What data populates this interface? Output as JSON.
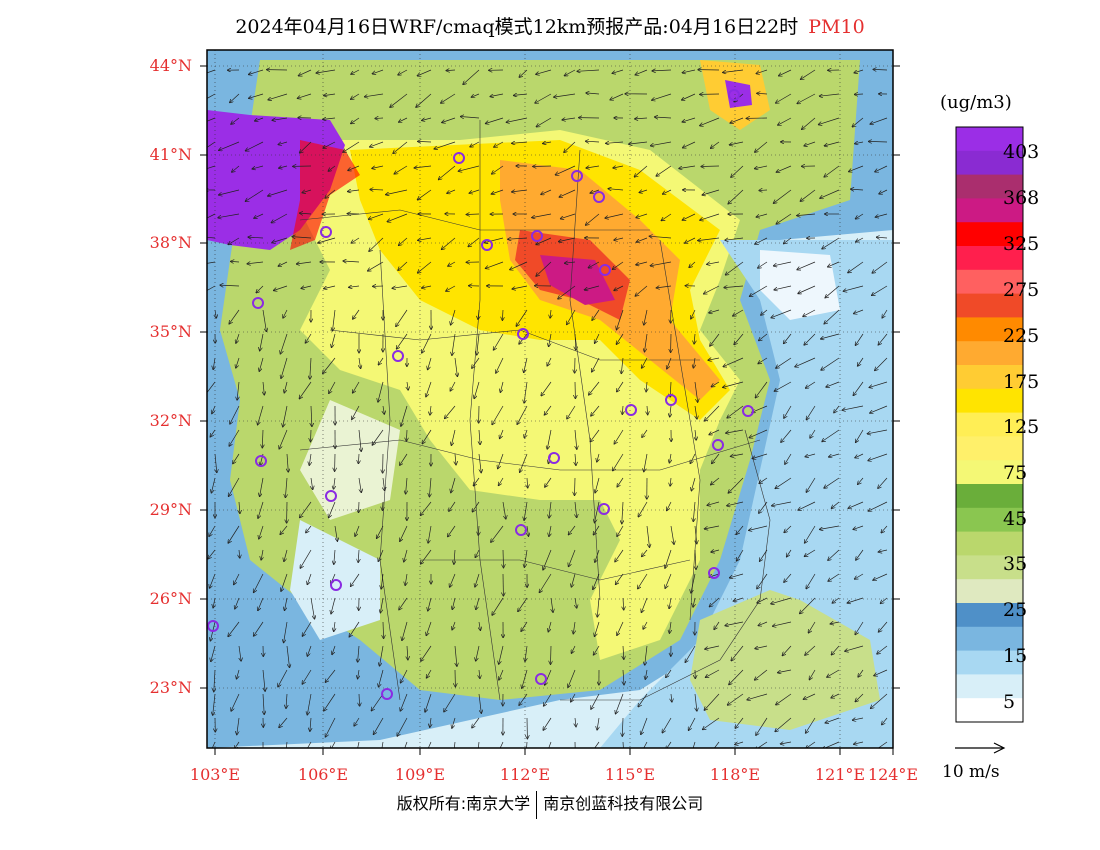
{
  "title": {
    "text": "2024年04月16日WRF/cmaq模式12km预报产品:04月16日22时",
    "variable": "PM10"
  },
  "map": {
    "lat_labels": [
      "44°N",
      "41°N",
      "38°N",
      "35°N",
      "32°N",
      "29°N",
      "26°N",
      "23°N"
    ],
    "lon_labels": [
      "103°E",
      "106°E",
      "109°E",
      "112°E",
      "115°E",
      "118°E",
      "121°E",
      "124°E"
    ]
  },
  "colorbar": {
    "unit": "(ug/m3)",
    "labels": [
      "403",
      "368",
      "325",
      "275",
      "225",
      "175",
      "125",
      "75",
      "45",
      "35",
      "25",
      "15",
      "5"
    ],
    "colors": [
      "#9b2ee6",
      "#8a2bd2",
      "#aa2e6e",
      "#cc1a84",
      "#ff0000",
      "#ff1f4d",
      "#ff6060",
      "#f04a28",
      "#ff8a00",
      "#ffaa30",
      "#ffcc33",
      "#ffe400",
      "#ffee55",
      "#fff06a",
      "#f4f875",
      "#6aae3a",
      "#8ac650",
      "#bad76c",
      "#c8df8a",
      "#dfe9c0",
      "#4f90c8",
      "#7ab6e0",
      "#a8d8f2",
      "#d8eff8",
      "#ffffff"
    ]
  },
  "wind_scale": {
    "label": "10 m/s"
  },
  "footer": {
    "left": "版权所有:南京大学",
    "right": "南京创蓝科技有限公司"
  }
}
